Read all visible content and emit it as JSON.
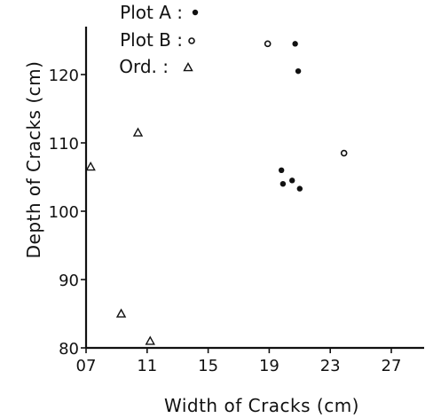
{
  "chart_data": {
    "type": "scatter",
    "title": "",
    "xlabel": "Width of Cracks (cm)",
    "ylabel": "Depth of Cracks (cm)",
    "xlim": [
      0.7,
      2.9
    ],
    "ylim": [
      80,
      126
    ],
    "x_ticks": [
      {
        "value": 0.7,
        "label": "07"
      },
      {
        "value": 1.1,
        "label": "11"
      },
      {
        "value": 1.5,
        "label": "15"
      },
      {
        "value": 1.9,
        "label": "19"
      },
      {
        "value": 2.3,
        "label": "23"
      },
      {
        "value": 2.7,
        "label": "27"
      }
    ],
    "y_ticks": [
      {
        "value": 80,
        "label": "80"
      },
      {
        "value": 90,
        "label": "90"
      },
      {
        "value": 100,
        "label": "100"
      },
      {
        "value": 110,
        "label": "110"
      },
      {
        "value": 120,
        "label": "120"
      }
    ],
    "grid": false,
    "legend_position": "top-center",
    "series": [
      {
        "name": "Plot A :",
        "marker": "filled-dot",
        "points": [
          {
            "x": 2.07,
            "y": 124.5
          },
          {
            "x": 2.09,
            "y": 120.5
          },
          {
            "x": 1.98,
            "y": 106.0
          },
          {
            "x": 1.99,
            "y": 104.0
          },
          {
            "x": 2.05,
            "y": 104.5
          },
          {
            "x": 2.1,
            "y": 103.3
          }
        ]
      },
      {
        "name": "Plot B :",
        "marker": "open-dot",
        "points": [
          {
            "x": 1.89,
            "y": 124.5
          },
          {
            "x": 2.39,
            "y": 108.5
          }
        ]
      },
      {
        "name": "Ord. :",
        "marker": "triangle",
        "points": [
          {
            "x": 0.73,
            "y": 106.5
          },
          {
            "x": 1.04,
            "y": 111.5
          },
          {
            "x": 0.93,
            "y": 85.0
          },
          {
            "x": 1.12,
            "y": 81.0
          }
        ]
      }
    ]
  }
}
